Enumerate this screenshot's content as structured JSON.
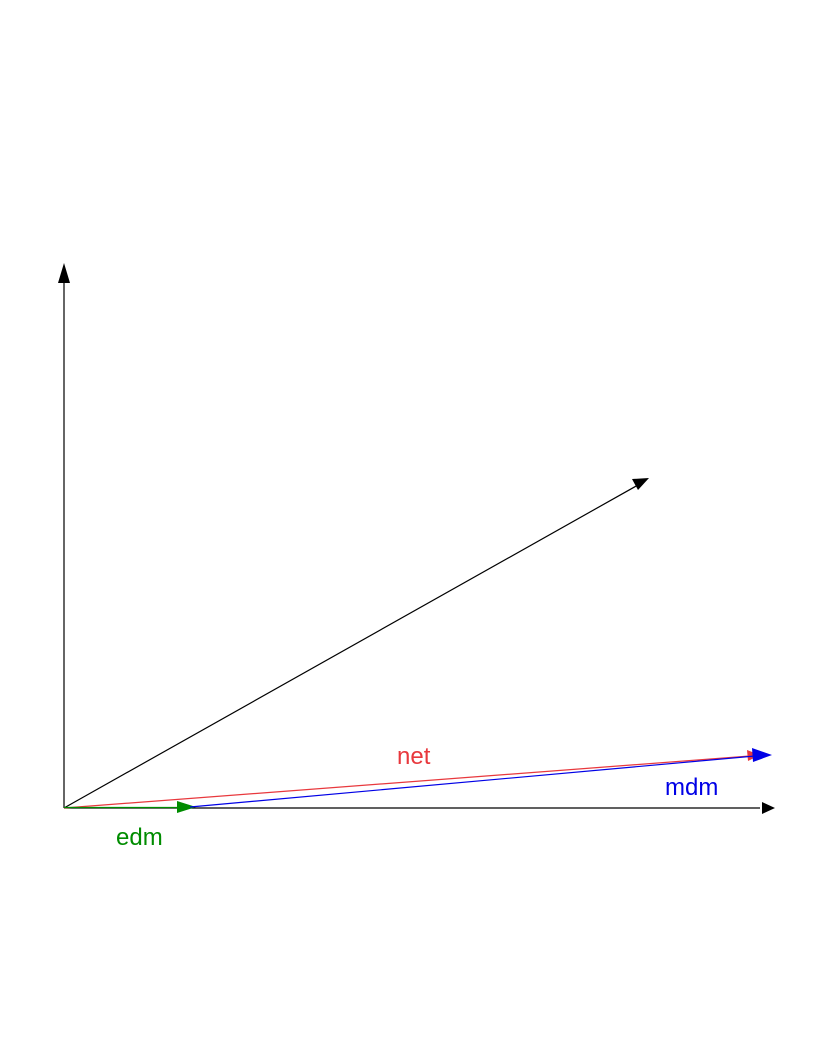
{
  "diagram": {
    "labels": {
      "net": "net",
      "mdm": "mdm",
      "edm": "edm"
    },
    "colors": {
      "axes": "#000000",
      "diagonal": "#000000",
      "net": "#e8383d",
      "mdm": "#0000e6",
      "edm": "#008c00"
    }
  }
}
